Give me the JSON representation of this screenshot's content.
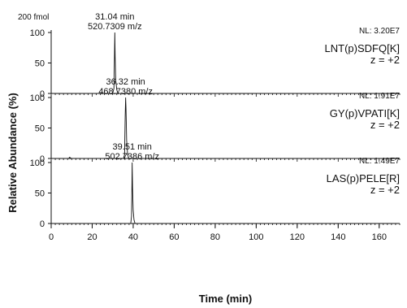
{
  "chart_data": {
    "type": "line",
    "xlabel": "Time (min)",
    "ylabel": "Relative Abundance (%)",
    "xlim": [
      0,
      170
    ],
    "x_ticks": [
      0,
      20,
      40,
      60,
      80,
      100,
      120,
      140,
      160
    ],
    "ylim": [
      0,
      100
    ],
    "y_ticks": [
      0,
      50,
      100
    ],
    "amount_label": "200 fmol",
    "panels": [
      {
        "name": "LNT(p)SDFQ[K]",
        "peptide": "LNT(p)SDFQ[K]",
        "charge": "z = +2",
        "nl": "NL: 3.20E7",
        "peak_time_label": "31.04 min",
        "peak_mz_label": "520.7309 m/z",
        "x": [
          0,
          29.4,
          30.1,
          30.6,
          30.85,
          31.04,
          31.2,
          31.5,
          32.0,
          32.6,
          170
        ],
        "y": [
          0,
          0,
          1.5,
          8,
          55,
          100,
          60,
          22,
          6,
          0,
          0
        ]
      },
      {
        "name": "GY(p)VPATI[K]",
        "peptide": "GY(p)VPATI[K]",
        "charge": "z = +2",
        "nl": "NL: 1.91E7",
        "peak_time_label": "36.32 min",
        "peak_mz_label": "468.7380 m/z",
        "x": [
          0,
          8.5,
          9.0,
          9.6,
          10.2,
          35.2,
          35.8,
          36.1,
          36.32,
          36.5,
          36.8,
          37.3,
          37.9,
          170
        ],
        "y": [
          0,
          0,
          2,
          0.5,
          0,
          0,
          6,
          70,
          100,
          82,
          30,
          6,
          0,
          0
        ]
      },
      {
        "name": "LAS(p)PELE[R]",
        "peptide": "LAS(p)PELE[R]",
        "charge": "z = +2",
        "nl": "NL: 1.49E7",
        "peak_time_label": "39.51 min",
        "peak_mz_label": "502.7386 m/z",
        "x": [
          0,
          38.8,
          39.2,
          39.4,
          39.51,
          39.7,
          40.0,
          40.4,
          40.9,
          170
        ],
        "y": [
          0,
          0,
          12,
          65,
          100,
          58,
          22,
          6,
          0,
          0
        ]
      }
    ]
  }
}
